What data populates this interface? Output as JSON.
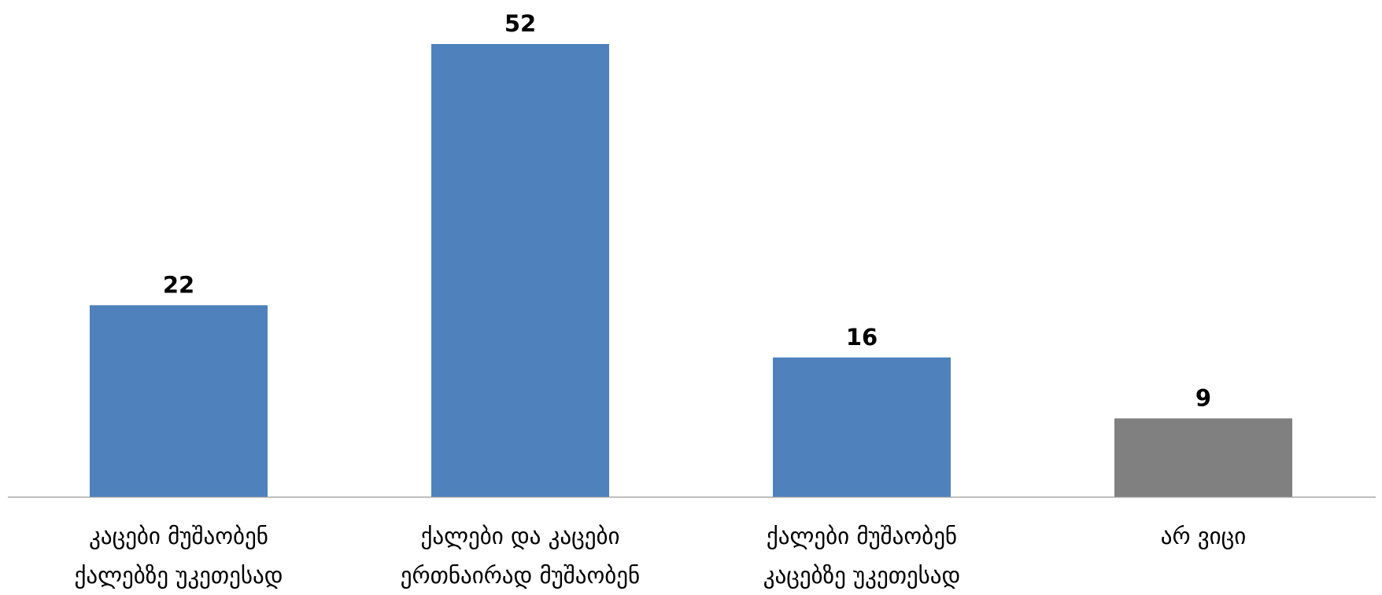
{
  "chart_data": {
    "type": "bar",
    "categories": [
      [
        "კაცები მუშაობენ",
        "ქალებზე უკეთესად"
      ],
      [
        "ქალები და კაცები",
        "ერთნაირად მუშაობენ"
      ],
      [
        "ქალები მუშაობენ",
        "კაცებზე უკეთესად"
      ],
      [
        "არ ვიცი"
      ]
    ],
    "values": [
      22,
      52,
      16,
      9
    ],
    "colors": [
      "#4F81BD",
      "#4F81BD",
      "#4F81BD",
      "#808080"
    ],
    "axis_color": "#A6A6A6",
    "ylim": [
      0,
      52
    ],
    "grid": false,
    "legend": "none"
  }
}
